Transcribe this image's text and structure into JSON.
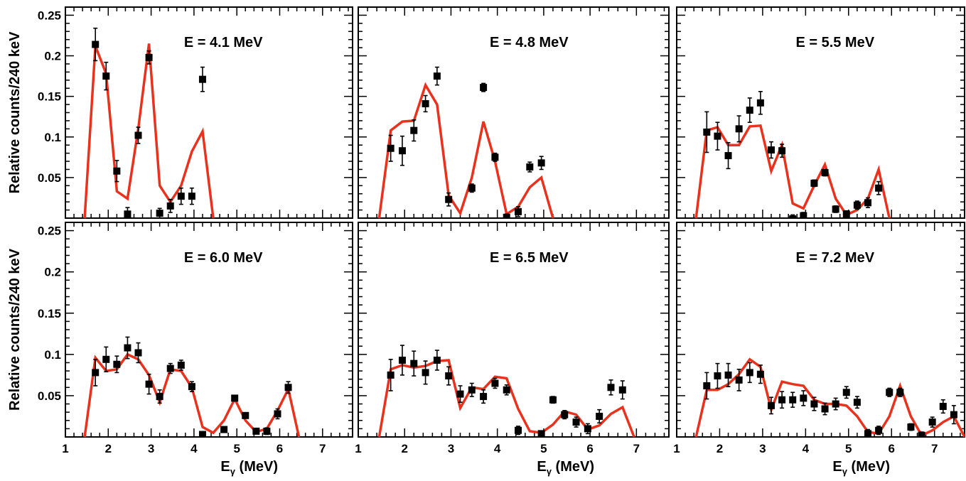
{
  "figure": {
    "ylabel": "Relative counts/240 keV",
    "xlabel": "E",
    "xlabel_sub": "γ",
    "xlabel_unit": " (MeV)"
  },
  "chart_data": [
    {
      "type": "scatter",
      "title": "E = 4.1 MeV",
      "xlabel": "Eγ (MeV)",
      "ylabel": "Relative counts/240 keV",
      "xlim": [
        1,
        7.7
      ],
      "ylim": [
        0,
        0.26
      ],
      "grid": false,
      "points": [
        {
          "x": 1.7,
          "y": 0.214,
          "err": 0.02
        },
        {
          "x": 1.95,
          "y": 0.175,
          "err": 0.017
        },
        {
          "x": 2.2,
          "y": 0.058,
          "err": 0.013
        },
        {
          "x": 2.45,
          "y": 0.005,
          "err": 0.008
        },
        {
          "x": 2.7,
          "y": 0.102,
          "err": 0.01
        },
        {
          "x": 2.95,
          "y": 0.198,
          "err": 0.008
        },
        {
          "x": 3.2,
          "y": 0.006,
          "err": 0.006
        },
        {
          "x": 3.45,
          "y": 0.015,
          "err": 0.008
        },
        {
          "x": 3.7,
          "y": 0.027,
          "err": 0.01
        },
        {
          "x": 3.95,
          "y": 0.027,
          "err": 0.01
        },
        {
          "x": 4.2,
          "y": 0.171,
          "err": 0.015
        }
      ],
      "curve": [
        [
          1.45,
          0
        ],
        [
          1.7,
          0.212
        ],
        [
          1.95,
          0.178
        ],
        [
          2.2,
          0.033
        ],
        [
          2.45,
          0.024
        ],
        [
          2.7,
          0.11
        ],
        [
          2.95,
          0.215
        ],
        [
          3.2,
          0.04
        ],
        [
          3.45,
          0.02
        ],
        [
          3.7,
          0.04
        ],
        [
          3.95,
          0.082
        ],
        [
          4.2,
          0.107
        ],
        [
          4.45,
          0
        ]
      ]
    },
    {
      "type": "scatter",
      "title": "E = 4.8 MeV",
      "xlabel": "Eγ (MeV)",
      "ylabel": "",
      "xlim": [
        1,
        7.7
      ],
      "ylim": [
        0,
        0.26
      ],
      "grid": false,
      "points": [
        {
          "x": 1.7,
          "y": 0.086,
          "err": 0.016
        },
        {
          "x": 1.95,
          "y": 0.083,
          "err": 0.018
        },
        {
          "x": 2.2,
          "y": 0.108,
          "err": 0.013
        },
        {
          "x": 2.45,
          "y": 0.141,
          "err": 0.01
        },
        {
          "x": 2.7,
          "y": 0.175,
          "err": 0.011
        },
        {
          "x": 2.95,
          "y": 0.023,
          "err": 0.008
        },
        {
          "x": 3.45,
          "y": 0.037,
          "err": 0.005
        },
        {
          "x": 3.7,
          "y": 0.161,
          "err": 0.005
        },
        {
          "x": 3.95,
          "y": 0.075,
          "err": 0.005
        },
        {
          "x": 4.2,
          "y": 0.001,
          "err": 0.004
        },
        {
          "x": 4.45,
          "y": 0.008,
          "err": 0.006
        },
        {
          "x": 4.7,
          "y": 0.063,
          "err": 0.006
        },
        {
          "x": 4.95,
          "y": 0.068,
          "err": 0.008
        }
      ],
      "curve": [
        [
          1.45,
          0
        ],
        [
          1.7,
          0.108
        ],
        [
          1.95,
          0.119
        ],
        [
          2.2,
          0.12
        ],
        [
          2.45,
          0.164
        ],
        [
          2.7,
          0.14
        ],
        [
          2.95,
          0.028
        ],
        [
          3.2,
          0.006
        ],
        [
          3.45,
          0.05
        ],
        [
          3.7,
          0.119
        ],
        [
          3.95,
          0.07
        ],
        [
          4.2,
          0.005
        ],
        [
          4.45,
          0.014
        ],
        [
          4.7,
          0.038
        ],
        [
          4.95,
          0.05
        ],
        [
          5.2,
          0
        ]
      ]
    },
    {
      "type": "scatter",
      "title": "E = 5.5 MeV",
      "xlabel": "Eγ (MeV)",
      "ylabel": "",
      "xlim": [
        1,
        7.7
      ],
      "ylim": [
        0,
        0.26
      ],
      "grid": false,
      "points": [
        {
          "x": 1.7,
          "y": 0.106,
          "err": 0.025
        },
        {
          "x": 1.95,
          "y": 0.101,
          "err": 0.017
        },
        {
          "x": 2.2,
          "y": 0.077,
          "err": 0.016
        },
        {
          "x": 2.45,
          "y": 0.11,
          "err": 0.016
        },
        {
          "x": 2.7,
          "y": 0.133,
          "err": 0.015
        },
        {
          "x": 2.95,
          "y": 0.142,
          "err": 0.014
        },
        {
          "x": 3.2,
          "y": 0.084,
          "err": 0.01
        },
        {
          "x": 3.45,
          "y": 0.083,
          "err": 0.008
        },
        {
          "x": 3.7,
          "y": -0.001,
          "err": 0.005
        },
        {
          "x": 3.95,
          "y": 0.003,
          "err": 0.004
        },
        {
          "x": 4.2,
          "y": 0.043,
          "err": 0.004
        },
        {
          "x": 4.45,
          "y": 0.056,
          "err": 0.004
        },
        {
          "x": 4.7,
          "y": 0.011,
          "err": 0.004
        },
        {
          "x": 4.95,
          "y": 0.005,
          "err": 0.004
        },
        {
          "x": 5.2,
          "y": 0.016,
          "err": 0.005
        },
        {
          "x": 5.45,
          "y": 0.019,
          "err": 0.006
        },
        {
          "x": 5.7,
          "y": 0.037,
          "err": 0.008
        }
      ],
      "curve": [
        [
          1.45,
          0
        ],
        [
          1.7,
          0.108
        ],
        [
          1.95,
          0.112
        ],
        [
          2.2,
          0.09
        ],
        [
          2.45,
          0.09
        ],
        [
          2.7,
          0.113
        ],
        [
          2.95,
          0.114
        ],
        [
          3.2,
          0.058
        ],
        [
          3.45,
          0.09
        ],
        [
          3.7,
          0.018
        ],
        [
          3.95,
          0.012
        ],
        [
          4.2,
          0.04
        ],
        [
          4.45,
          0.066
        ],
        [
          4.7,
          0.024
        ],
        [
          4.95,
          0.004
        ],
        [
          5.2,
          0.01
        ],
        [
          5.45,
          0.024
        ],
        [
          5.7,
          0.06
        ],
        [
          5.95,
          0
        ]
      ]
    },
    {
      "type": "scatter",
      "title": "E = 6.0 MeV",
      "xlabel": "Eγ (MeV)",
      "ylabel": "Relative counts/240 keV",
      "xlim": [
        1,
        7.7
      ],
      "ylim": [
        0,
        0.26
      ],
      "grid": false,
      "points": [
        {
          "x": 1.7,
          "y": 0.078,
          "err": 0.016
        },
        {
          "x": 1.95,
          "y": 0.094,
          "err": 0.015
        },
        {
          "x": 2.2,
          "y": 0.088,
          "err": 0.01
        },
        {
          "x": 2.45,
          "y": 0.108,
          "err": 0.013
        },
        {
          "x": 2.7,
          "y": 0.102,
          "err": 0.012
        },
        {
          "x": 2.95,
          "y": 0.064,
          "err": 0.012
        },
        {
          "x": 3.2,
          "y": 0.049,
          "err": 0.008
        },
        {
          "x": 3.45,
          "y": 0.083,
          "err": 0.006
        },
        {
          "x": 3.7,
          "y": 0.087,
          "err": 0.006
        },
        {
          "x": 3.95,
          "y": 0.061,
          "err": 0.006
        },
        {
          "x": 4.2,
          "y": 0.003,
          "err": 0.003
        },
        {
          "x": 4.7,
          "y": 0.009,
          "err": 0.003
        },
        {
          "x": 4.95,
          "y": 0.047,
          "err": 0.003
        },
        {
          "x": 5.2,
          "y": 0.026,
          "err": 0.003
        },
        {
          "x": 5.45,
          "y": 0.007,
          "err": 0.003
        },
        {
          "x": 5.7,
          "y": 0.007,
          "err": 0.004
        },
        {
          "x": 5.95,
          "y": 0.028,
          "err": 0.006
        },
        {
          "x": 6.2,
          "y": 0.06,
          "err": 0.007
        }
      ],
      "curve": [
        [
          1.45,
          0
        ],
        [
          1.7,
          0.096
        ],
        [
          1.95,
          0.08
        ],
        [
          2.2,
          0.082
        ],
        [
          2.45,
          0.1
        ],
        [
          2.7,
          0.094
        ],
        [
          2.95,
          0.075
        ],
        [
          3.2,
          0.042
        ],
        [
          3.45,
          0.082
        ],
        [
          3.7,
          0.08
        ],
        [
          3.95,
          0.06
        ],
        [
          4.2,
          0.012
        ],
        [
          4.45,
          0.005
        ],
        [
          4.7,
          0.02
        ],
        [
          4.95,
          0.046
        ],
        [
          5.2,
          0.02
        ],
        [
          5.45,
          0.006
        ],
        [
          5.7,
          0.01
        ],
        [
          5.95,
          0.032
        ],
        [
          6.2,
          0.058
        ],
        [
          6.45,
          0
        ]
      ]
    },
    {
      "type": "scatter",
      "title": "E = 6.5 MeV",
      "xlabel": "Eγ (MeV)",
      "ylabel": "",
      "xlim": [
        1,
        7.7
      ],
      "ylim": [
        0,
        0.26
      ],
      "grid": false,
      "points": [
        {
          "x": 1.7,
          "y": 0.075,
          "err": 0.019
        },
        {
          "x": 1.95,
          "y": 0.093,
          "err": 0.018
        },
        {
          "x": 2.2,
          "y": 0.089,
          "err": 0.015
        },
        {
          "x": 2.45,
          "y": 0.078,
          "err": 0.014
        },
        {
          "x": 2.7,
          "y": 0.093,
          "err": 0.012
        },
        {
          "x": 2.95,
          "y": 0.074,
          "err": 0.011
        },
        {
          "x": 3.2,
          "y": 0.052,
          "err": 0.01
        },
        {
          "x": 3.45,
          "y": 0.057,
          "err": 0.008
        },
        {
          "x": 3.7,
          "y": 0.049,
          "err": 0.008
        },
        {
          "x": 3.95,
          "y": 0.065,
          "err": 0.006
        },
        {
          "x": 4.2,
          "y": 0.057,
          "err": 0.006
        },
        {
          "x": 4.45,
          "y": 0.008,
          "err": 0.005
        },
        {
          "x": 4.95,
          "y": 0.004,
          "err": 0.003
        },
        {
          "x": 5.2,
          "y": 0.045,
          "err": 0.004
        },
        {
          "x": 5.45,
          "y": 0.027,
          "err": 0.005
        },
        {
          "x": 5.7,
          "y": 0.018,
          "err": 0.006
        },
        {
          "x": 5.95,
          "y": 0.01,
          "err": 0.006
        },
        {
          "x": 6.2,
          "y": 0.025,
          "err": 0.008
        },
        {
          "x": 6.45,
          "y": 0.06,
          "err": 0.009
        },
        {
          "x": 6.7,
          "y": 0.057,
          "err": 0.011
        }
      ],
      "curve": [
        [
          1.45,
          0
        ],
        [
          1.7,
          0.082
        ],
        [
          1.95,
          0.087
        ],
        [
          2.2,
          0.084
        ],
        [
          2.45,
          0.086
        ],
        [
          2.7,
          0.092
        ],
        [
          2.95,
          0.093
        ],
        [
          3.2,
          0.035
        ],
        [
          3.45,
          0.06
        ],
        [
          3.7,
          0.058
        ],
        [
          3.95,
          0.073
        ],
        [
          4.2,
          0.071
        ],
        [
          4.45,
          0.034
        ],
        [
          4.7,
          0.007
        ],
        [
          4.95,
          0.005
        ],
        [
          5.2,
          0.015
        ],
        [
          5.45,
          0.031
        ],
        [
          5.7,
          0.027
        ],
        [
          5.95,
          0.009
        ],
        [
          6.2,
          0.014
        ],
        [
          6.45,
          0.028
        ],
        [
          6.7,
          0.036
        ],
        [
          6.95,
          0
        ]
      ]
    },
    {
      "type": "scatter",
      "title": "E = 7.2 MeV",
      "xlabel": "Eγ (MeV)",
      "ylabel": "",
      "xlim": [
        1,
        7.7
      ],
      "ylim": [
        0,
        0.26
      ],
      "grid": false,
      "points": [
        {
          "x": 1.7,
          "y": 0.062,
          "err": 0.016
        },
        {
          "x": 1.95,
          "y": 0.074,
          "err": 0.015
        },
        {
          "x": 2.2,
          "y": 0.075,
          "err": 0.014
        },
        {
          "x": 2.45,
          "y": 0.069,
          "err": 0.013
        },
        {
          "x": 2.7,
          "y": 0.078,
          "err": 0.012
        },
        {
          "x": 2.95,
          "y": 0.076,
          "err": 0.011
        },
        {
          "x": 3.2,
          "y": 0.038,
          "err": 0.01
        },
        {
          "x": 3.45,
          "y": 0.045,
          "err": 0.01
        },
        {
          "x": 3.7,
          "y": 0.045,
          "err": 0.009
        },
        {
          "x": 3.95,
          "y": 0.047,
          "err": 0.009
        },
        {
          "x": 4.2,
          "y": 0.04,
          "err": 0.008
        },
        {
          "x": 4.45,
          "y": 0.034,
          "err": 0.007
        },
        {
          "x": 4.7,
          "y": 0.04,
          "err": 0.007
        },
        {
          "x": 4.95,
          "y": 0.054,
          "err": 0.007
        },
        {
          "x": 5.2,
          "y": 0.042,
          "err": 0.007
        },
        {
          "x": 5.45,
          "y": 0.004,
          "err": 0.005
        },
        {
          "x": 5.7,
          "y": 0.008,
          "err": 0.005
        },
        {
          "x": 5.95,
          "y": 0.054,
          "err": 0.005
        },
        {
          "x": 6.2,
          "y": 0.054,
          "err": 0.005
        },
        {
          "x": 6.45,
          "y": 0.012,
          "err": 0.004
        },
        {
          "x": 6.7,
          "y": 0.002,
          "err": 0.004
        },
        {
          "x": 6.95,
          "y": 0.018,
          "err": 0.006
        },
        {
          "x": 7.2,
          "y": 0.037,
          "err": 0.008
        },
        {
          "x": 7.45,
          "y": 0.027,
          "err": 0.011
        }
      ],
      "curve": [
        [
          1.45,
          0
        ],
        [
          1.7,
          0.057
        ],
        [
          1.95,
          0.057
        ],
        [
          2.2,
          0.064
        ],
        [
          2.45,
          0.076
        ],
        [
          2.7,
          0.094
        ],
        [
          2.95,
          0.085
        ],
        [
          3.2,
          0.033
        ],
        [
          3.45,
          0.067
        ],
        [
          3.7,
          0.064
        ],
        [
          3.95,
          0.062
        ],
        [
          4.2,
          0.045
        ],
        [
          4.45,
          0.04
        ],
        [
          4.7,
          0.04
        ],
        [
          4.95,
          0.038
        ],
        [
          5.2,
          0.025
        ],
        [
          5.45,
          0.006
        ],
        [
          5.7,
          0.004
        ],
        [
          5.95,
          0.025
        ],
        [
          6.2,
          0.062
        ],
        [
          6.45,
          0.025
        ],
        [
          6.7,
          0.002
        ],
        [
          6.95,
          0.008
        ],
        [
          7.2,
          0.018
        ],
        [
          7.45,
          0.025
        ],
        [
          7.7,
          0
        ]
      ]
    }
  ],
  "colors": {
    "fit_curve": "#e8321e",
    "markers": "#000000",
    "frame": "#000000"
  }
}
